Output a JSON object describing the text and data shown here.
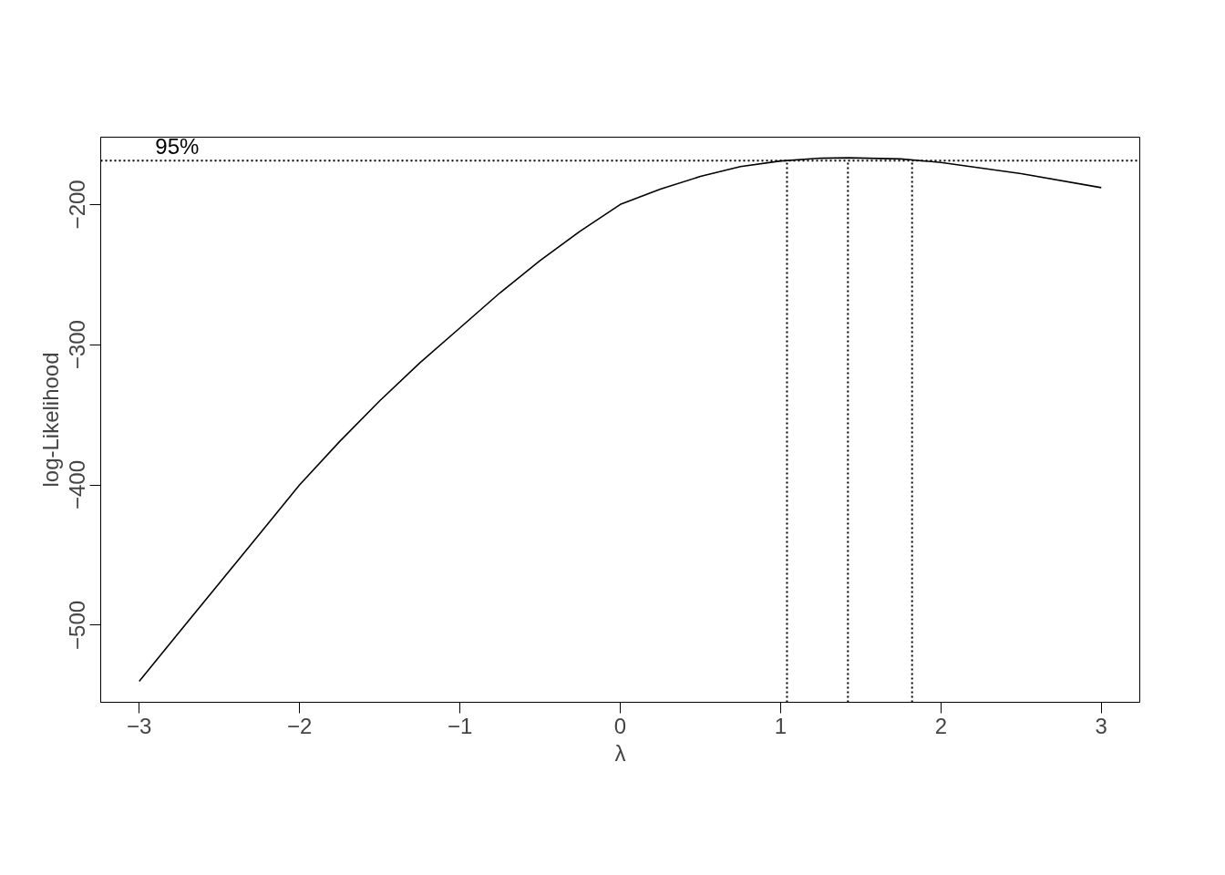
{
  "chart_data": {
    "type": "line",
    "xlabel": "λ",
    "ylabel": "log-Likelihood",
    "x": [
      -3,
      -2.75,
      -2.5,
      -2.25,
      -2,
      -1.75,
      -1.5,
      -1.25,
      -1,
      -0.75,
      -0.5,
      -0.25,
      0,
      0.25,
      0.5,
      0.75,
      1,
      1.25,
      1.42,
      1.75,
      2,
      2.5,
      3
    ],
    "series": [
      {
        "color": "#000000",
        "values": [
          -540,
          -505,
          -470,
          -435,
          -400,
          -369,
          -340,
          -313,
          -288,
          -263,
          -240,
          -219,
          -200,
          -189,
          -180,
          -173,
          -169,
          -167,
          -166.7,
          -167.5,
          -170,
          -178,
          -188
        ]
      }
    ],
    "annotations": [
      {
        "text": "95%",
        "x": -2.9,
        "y": -168.7
      }
    ],
    "xlim": [
      -3.24,
      3.24
    ],
    "ylim": [
      -555,
      -152
    ],
    "xticks": [
      -3,
      -2,
      -1,
      0,
      1,
      2,
      3
    ],
    "yticks": [
      -500,
      -400,
      -300,
      -200
    ],
    "ref_lines": [
      {
        "axis": "y",
        "value": -168.7,
        "line_style": "dotted",
        "color": "#000000"
      },
      {
        "axis": "x",
        "value": 1.04,
        "line_style": "dotted",
        "color": "#000000"
      },
      {
        "axis": "x",
        "value": 1.42,
        "line_style": "dotted",
        "color": "#000000"
      },
      {
        "axis": "x",
        "value": 1.82,
        "line_style": "dotted",
        "color": "#000000"
      }
    ],
    "grid": false,
    "line_style": "solid",
    "marker": "none"
  }
}
